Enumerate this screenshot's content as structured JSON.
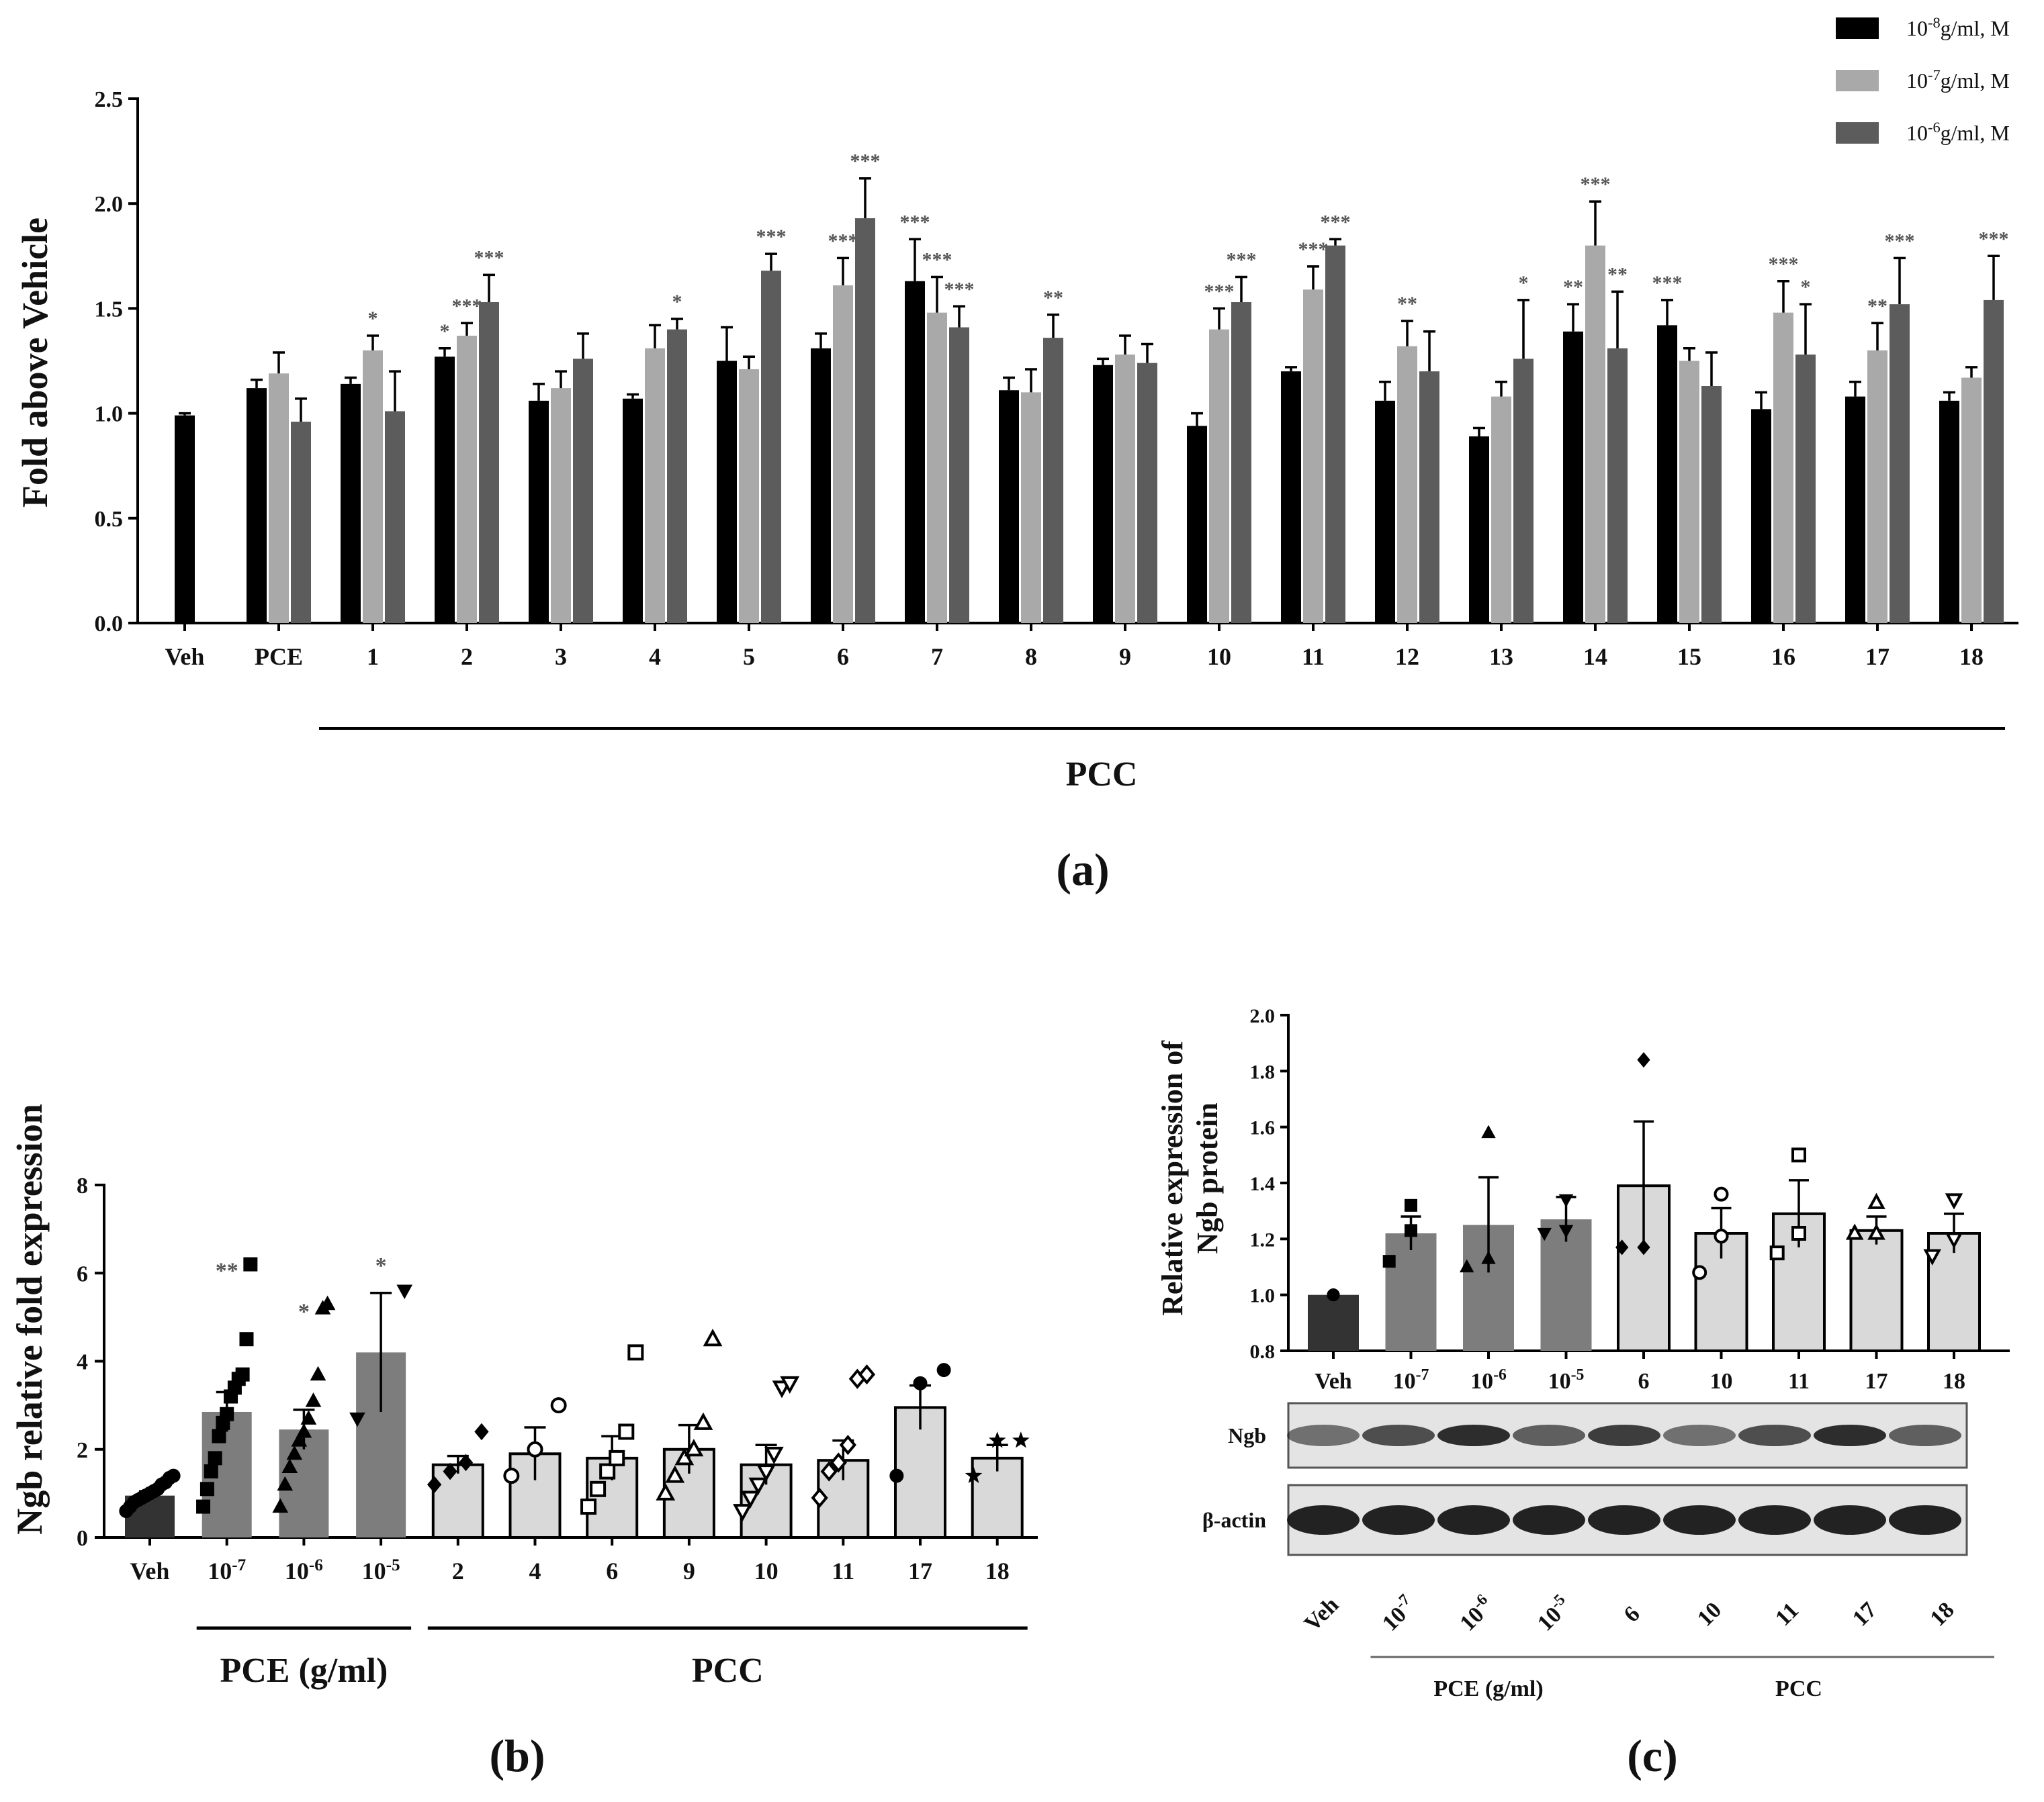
{
  "colors": {
    "dark": "#000000",
    "light": "#a9a9a9",
    "mid": "#5c5c5c",
    "veh": "#333333",
    "pce": "#7d7d7d",
    "pcc": "#d9d9d9",
    "sig": "#555555"
  },
  "chart_data": [
    {
      "id": "a",
      "type": "bar",
      "panel_label": "(a)",
      "ylabel": "Fold above Vehicle",
      "ylim": [
        0,
        2.5
      ],
      "yticks": [
        "0.0",
        "0.5",
        "1.0",
        "1.5",
        "2.0",
        "2.5"
      ],
      "group_label": "PCC",
      "legend": [
        {
          "name": "10",
          "exp": "-8",
          "suffix": "g/ml, M",
          "color": "#000000"
        },
        {
          "name": "10",
          "exp": "-7",
          "suffix": "g/ml, M",
          "color": "#a9a9a9"
        },
        {
          "name": "10",
          "exp": "-6",
          "suffix": "g/ml, M",
          "color": "#5c5c5c"
        }
      ],
      "categories": [
        "Veh",
        "PCE",
        "1",
        "2",
        "3",
        "4",
        "5",
        "6",
        "7",
        "8",
        "9",
        "10",
        "11",
        "12",
        "13",
        "14",
        "15",
        "16",
        "17",
        "18"
      ],
      "series": [
        {
          "name": "10^-8 g/ml, M",
          "values": [
            0.99,
            1.12,
            1.14,
            1.27,
            1.06,
            1.07,
            1.25,
            1.31,
            1.63,
            1.11,
            1.23,
            0.94,
            1.2,
            1.06,
            0.89,
            1.39,
            1.42,
            1.02,
            1.08,
            1.06
          ],
          "errors": [
            0.01,
            0.04,
            0.03,
            0.04,
            0.08,
            0.02,
            0.16,
            0.07,
            0.2,
            0.06,
            0.03,
            0.06,
            0.02,
            0.09,
            0.04,
            0.13,
            0.12,
            0.08,
            0.07,
            0.04
          ],
          "sig": [
            "",
            "",
            "",
            "*",
            "",
            "",
            "",
            "",
            "***",
            "",
            "",
            "",
            "",
            "",
            "",
            "**",
            "***",
            "",
            "",
            ""
          ]
        },
        {
          "name": "10^-7 g/ml, M",
          "values": [
            null,
            1.19,
            1.3,
            1.37,
            1.12,
            1.31,
            1.21,
            1.61,
            1.48,
            1.1,
            1.28,
            1.4,
            1.59,
            1.32,
            1.08,
            1.8,
            1.25,
            1.48,
            1.3,
            1.17
          ],
          "errors": [
            null,
            0.1,
            0.07,
            0.06,
            0.08,
            0.11,
            0.06,
            0.13,
            0.17,
            0.11,
            0.09,
            0.1,
            0.11,
            0.12,
            0.07,
            0.21,
            0.06,
            0.15,
            0.13,
            0.05
          ],
          "sig": [
            "",
            "",
            "*",
            "***",
            "",
            "",
            "",
            "***",
            "***",
            "",
            "",
            "***",
            "***",
            "**",
            "",
            "***",
            "",
            "***",
            "**",
            ""
          ]
        },
        {
          "name": "10^-6 g/ml, M",
          "values": [
            null,
            0.96,
            1.01,
            1.53,
            1.26,
            1.4,
            1.68,
            1.93,
            1.41,
            1.36,
            1.24,
            1.53,
            1.8,
            1.2,
            1.26,
            1.31,
            1.13,
            1.28,
            1.52,
            1.54
          ],
          "errors": [
            null,
            0.11,
            0.19,
            0.13,
            0.12,
            0.05,
            0.08,
            0.19,
            0.1,
            0.11,
            0.09,
            0.12,
            0.03,
            0.19,
            0.28,
            0.27,
            0.16,
            0.24,
            0.22,
            0.21
          ],
          "sig": [
            "",
            "",
            "",
            "***",
            "",
            "*",
            "***",
            "***",
            "***",
            "**",
            "",
            "***",
            "***",
            "",
            "*",
            "**",
            "",
            "*",
            "***",
            "***"
          ]
        }
      ]
    },
    {
      "id": "b",
      "type": "bar",
      "panel_label": "(b)",
      "ylabel": "Ngb relative fold expression",
      "ylim": [
        0,
        8
      ],
      "yticks": [
        "0",
        "2",
        "4",
        "6",
        "8"
      ],
      "categories": [
        {
          "base": "Veh",
          "exp": ""
        },
        {
          "base": "10",
          "exp": "-7"
        },
        {
          "base": "10",
          "exp": "-6"
        },
        {
          "base": "10",
          "exp": "-5"
        },
        {
          "base": "2",
          "exp": ""
        },
        {
          "base": "4",
          "exp": ""
        },
        {
          "base": "6",
          "exp": ""
        },
        {
          "base": "9",
          "exp": ""
        },
        {
          "base": "10",
          "exp": ""
        },
        {
          "base": "11",
          "exp": ""
        },
        {
          "base": "17",
          "exp": ""
        },
        {
          "base": "18",
          "exp": ""
        }
      ],
      "groups": [
        {
          "label": "PCE (g/ml)",
          "from": 1,
          "to": 3
        },
        {
          "label": "PCC",
          "from": 4,
          "to": 11
        }
      ],
      "values": [
        0.95,
        2.85,
        2.45,
        4.2,
        1.65,
        1.9,
        1.8,
        2.0,
        1.65,
        1.75,
        2.95,
        1.8
      ],
      "errors": [
        0.1,
        0.45,
        0.45,
        1.35,
        0.2,
        0.6,
        0.5,
        0.55,
        0.45,
        0.45,
        0.5,
        0.3
      ],
      "sig": [
        "",
        "**",
        "*",
        "*",
        "",
        "",
        "",
        "",
        "",
        "",
        "",
        ""
      ],
      "points": [
        [
          0.6,
          0.7,
          0.8,
          0.85,
          0.9,
          0.95,
          1.0,
          1.05,
          1.1,
          1.2,
          1.25,
          1.35,
          1.4
        ],
        [
          0.7,
          1.1,
          1.5,
          1.8,
          2.3,
          2.6,
          2.8,
          3.2,
          3.4,
          3.6,
          3.7,
          4.5,
          6.2
        ],
        [
          0.7,
          1.2,
          1.6,
          1.9,
          2.2,
          2.4,
          2.7,
          3.1,
          3.7,
          5.2,
          5.3
        ],
        [
          2.7,
          5.6
        ],
        [
          1.2,
          1.5,
          1.7,
          2.4
        ],
        [
          1.4,
          2.0,
          3.0
        ],
        [
          0.7,
          1.1,
          1.5,
          1.8,
          2.4,
          4.2
        ],
        [
          1.0,
          1.4,
          1.8,
          2.0,
          2.6,
          4.5
        ],
        [
          0.6,
          0.9,
          1.2,
          1.5,
          1.9,
          3.4,
          3.5
        ],
        [
          0.9,
          1.5,
          1.7,
          2.1,
          3.6,
          3.7
        ],
        [
          1.4,
          3.5,
          3.8
        ],
        [
          1.4,
          2.2,
          2.2
        ]
      ],
      "markers": [
        "circle",
        "square",
        "triangle",
        "triangle-down",
        "diamond",
        "circle-open",
        "square-open",
        "triangle-open",
        "triangle-down-open",
        "diamond-open",
        "circle",
        "star"
      ]
    },
    {
      "id": "c",
      "type": "bar",
      "panel_label": "(c)",
      "ylabel": "Relative expression of Ngb protein",
      "ylabel_lines": [
        "Relative expression of",
        "Ngb protein"
      ],
      "ylim": [
        0.8,
        2.0
      ],
      "yticks": [
        "0.8",
        "1.0",
        "1.2",
        "1.4",
        "1.6",
        "1.8",
        "2.0"
      ],
      "categories": [
        {
          "base": "Veh",
          "exp": ""
        },
        {
          "base": "10",
          "exp": "-7"
        },
        {
          "base": "10",
          "exp": "-6"
        },
        {
          "base": "10",
          "exp": "-5"
        },
        {
          "base": "6",
          "exp": ""
        },
        {
          "base": "10",
          "exp": ""
        },
        {
          "base": "11",
          "exp": ""
        },
        {
          "base": "17",
          "exp": ""
        },
        {
          "base": "18",
          "exp": ""
        }
      ],
      "groups": [
        {
          "label": "PCE (g/ml)",
          "from": 1,
          "to": 3
        },
        {
          "label": "PCC",
          "from": 4,
          "to": 8
        }
      ],
      "values": [
        1.0,
        1.22,
        1.25,
        1.27,
        1.39,
        1.22,
        1.29,
        1.23,
        1.22
      ],
      "errors": [
        0.0,
        0.06,
        0.17,
        0.08,
        0.23,
        0.09,
        0.12,
        0.05,
        0.07
      ],
      "points": [
        [
          1.0,
          1.0,
          1.0
        ],
        [
          1.12,
          1.23,
          1.32
        ],
        [
          1.1,
          1.13,
          1.58
        ],
        [
          1.22,
          1.23,
          1.34
        ],
        [
          1.17,
          1.17,
          1.84
        ],
        [
          1.08,
          1.21,
          1.36
        ],
        [
          1.15,
          1.22,
          1.5
        ],
        [
          1.22,
          1.22,
          1.33
        ],
        [
          1.14,
          1.2,
          1.34
        ]
      ],
      "markers": [
        "circle",
        "square",
        "triangle",
        "triangle-down",
        "diamond",
        "circle-open",
        "square-open",
        "triangle-open",
        "triangle-down-open"
      ],
      "blot": {
        "rows": [
          "Ngb",
          "β-actin"
        ]
      }
    }
  ]
}
